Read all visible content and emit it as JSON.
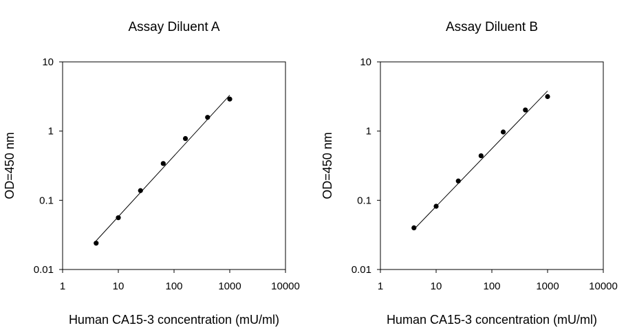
{
  "chart_data": [
    {
      "type": "scatter",
      "title": "Assay Diluent A",
      "xlabel": "Human CA15-3 concentration (mU/ml)",
      "ylabel": "OD=450 nm",
      "xscale": "log",
      "yscale": "log",
      "xlim": [
        1,
        10000
      ],
      "ylim": [
        0.01,
        10
      ],
      "xticks": [
        "1",
        "10",
        "100",
        "1000",
        "10000"
      ],
      "yticks": [
        "0.01",
        "0.1",
        "1",
        "10"
      ],
      "grid": false,
      "legend": "none",
      "series": [
        {
          "x": [
            4,
            10,
            25,
            64,
            160,
            400,
            1000
          ],
          "y": [
            0.024,
            0.056,
            0.138,
            0.34,
            0.78,
            1.58,
            2.9
          ]
        }
      ],
      "fit_line": {
        "x": [
          4,
          1000
        ],
        "y": [
          0.026,
          3.3
        ]
      }
    },
    {
      "type": "scatter",
      "title": "Assay Diluent B",
      "xlabel": "Human CA15-3 concentration (mU/ml)",
      "ylabel": "OD=450 nm",
      "xscale": "log",
      "yscale": "log",
      "xlim": [
        1,
        10000
      ],
      "ylim": [
        0.01,
        10
      ],
      "xticks": [
        "1",
        "10",
        "100",
        "1000",
        "10000"
      ],
      "yticks": [
        "0.01",
        "0.1",
        "1",
        "10"
      ],
      "grid": false,
      "legend": "none",
      "series": [
        {
          "x": [
            4,
            10,
            25,
            64,
            160,
            400,
            1000
          ],
          "y": [
            0.04,
            0.082,
            0.19,
            0.44,
            0.97,
            2.02,
            3.15
          ]
        }
      ],
      "fit_line": {
        "x": [
          4,
          1000
        ],
        "y": [
          0.038,
          3.8
        ]
      }
    }
  ]
}
